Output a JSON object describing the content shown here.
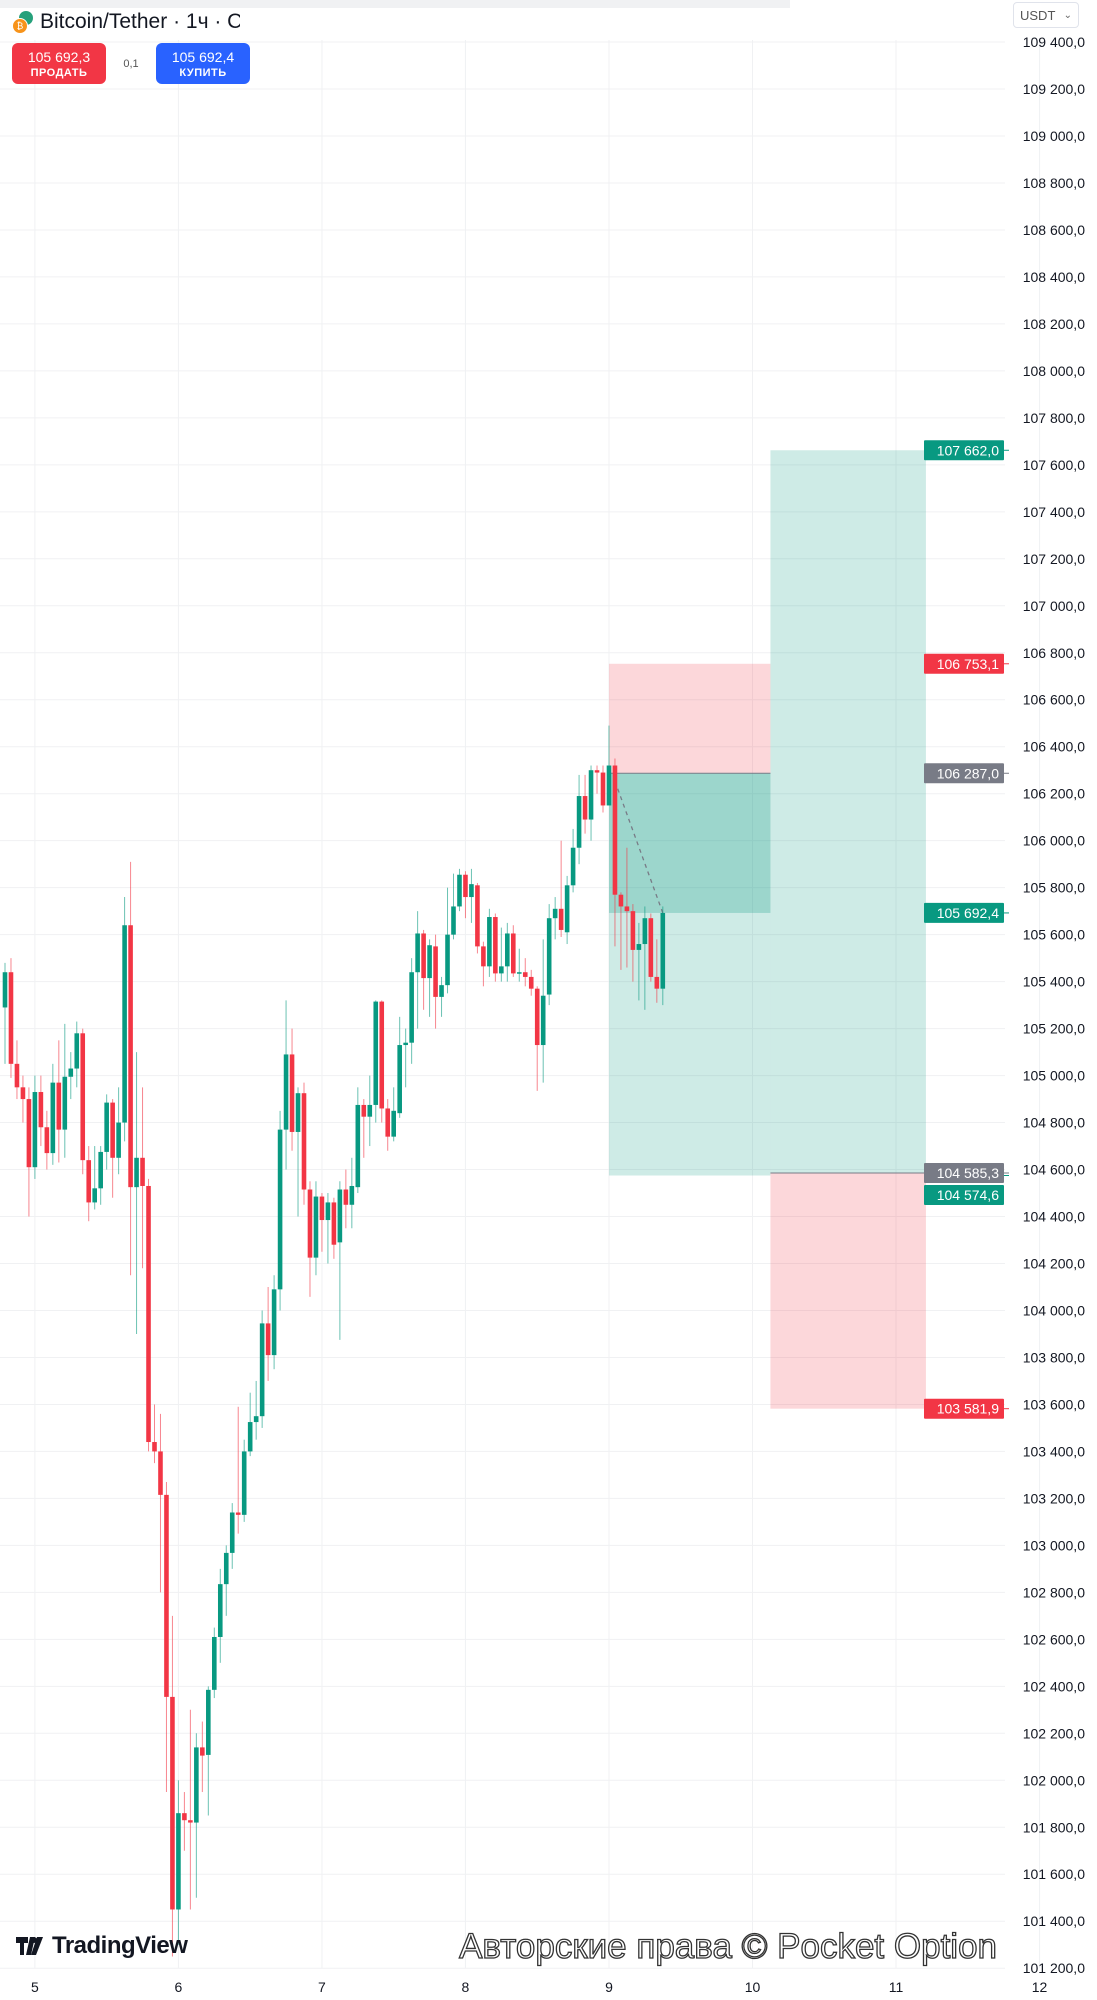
{
  "header": {
    "title": "Bitcoin/Tether · 1ч · С",
    "currency": "USDT"
  },
  "trade": {
    "sell_price": "105 692,3",
    "sell_label": "ПРОДАТЬ",
    "spread": "0,1",
    "buy_price": "105 692,4",
    "buy_label": "КУПИТЬ"
  },
  "watermark": {
    "brand": "TradingView",
    "copyright": "Авторские права © Pocket Option"
  },
  "colors": {
    "up": "#089981",
    "down": "#f23645",
    "profit": "#089981",
    "loss": "#f23645",
    "neutral_tag": "#787b86"
  },
  "chart_data": {
    "type": "candlestick",
    "interval": "1ч",
    "ylim": [
      101200,
      109400
    ],
    "y_ticks": [
      "109 400,0",
      "109 200,0",
      "109 000,0",
      "108 800,0",
      "108 600,0",
      "108 400,0",
      "108 200,0",
      "108 000,0",
      "107 800,0",
      "107 600,0",
      "107 400,0",
      "107 200,0",
      "107 000,0",
      "106 800,0",
      "106 600,0",
      "106 400,0",
      "106 200,0",
      "106 000,0",
      "105 800,0",
      "105 600,0",
      "105 400,0",
      "105 200,0",
      "105 000,0",
      "104 800,0",
      "104 600,0",
      "104 400,0",
      "104 200,0",
      "104 000,0",
      "103 800,0",
      "103 600,0",
      "103 400,0",
      "103 200,0",
      "103 000,0",
      "102 800,0",
      "102 600,0",
      "102 400,0",
      "102 200,0",
      "102 000,0",
      "101 800,0",
      "101 600,0",
      "101 400,0",
      "101 200,0"
    ],
    "x_ticks": [
      "5",
      "6",
      "7",
      "8",
      "9",
      "10",
      "11",
      "12"
    ],
    "grid": true,
    "first_bar": "4 19:00",
    "candles_ohlc": [
      [
        105290,
        105480,
        105050,
        105440
      ],
      [
        105440,
        105500,
        104990,
        105050
      ],
      [
        105050,
        105150,
        104900,
        104950
      ],
      [
        104950,
        105000,
        104800,
        104900
      ],
      [
        104900,
        104950,
        104400,
        104610
      ],
      [
        104610,
        105000,
        104560,
        104930
      ],
      [
        104930,
        105000,
        104700,
        104780
      ],
      [
        104780,
        104850,
        104600,
        104670
      ],
      [
        104670,
        105050,
        104620,
        104970
      ],
      [
        104970,
        105150,
        104630,
        104770
      ],
      [
        104770,
        105220,
        104650,
        104995
      ],
      [
        104995,
        105100,
        104900,
        105030
      ],
      [
        105030,
        105230,
        104950,
        105180
      ],
      [
        105180,
        105200,
        104580,
        104640
      ],
      [
        104640,
        104700,
        104380,
        104460
      ],
      [
        104460,
        104700,
        104430,
        104520
      ],
      [
        104520,
        104700,
        104450,
        104675
      ],
      [
        104675,
        104920,
        104600,
        104885
      ],
      [
        104885,
        104900,
        104480,
        104650
      ],
      [
        104650,
        104950,
        104580,
        104800
      ],
      [
        104800,
        105760,
        104720,
        105640
      ],
      [
        105640,
        105910,
        104150,
        104525
      ],
      [
        104525,
        105100,
        103900,
        104650
      ],
      [
        104650,
        104950,
        104180,
        104530
      ],
      [
        104530,
        104560,
        103400,
        103440
      ],
      [
        103440,
        103600,
        103350,
        103400
      ],
      [
        103400,
        103560,
        102800,
        103215
      ],
      [
        103215,
        103270,
        101950,
        102355
      ],
      [
        102355,
        102700,
        101250,
        101450
      ],
      [
        101450,
        102000,
        101300,
        101860
      ],
      [
        101860,
        101950,
        101700,
        101830
      ],
      [
        101830,
        102300,
        101450,
        101820
      ],
      [
        101820,
        102200,
        101500,
        102140
      ],
      [
        102140,
        102250,
        101950,
        102105
      ],
      [
        102108,
        102400,
        101850,
        102385
      ],
      [
        102385,
        102650,
        102350,
        102610
      ],
      [
        102610,
        102900,
        102500,
        102835
      ],
      [
        102835,
        103000,
        102700,
        102968
      ],
      [
        102968,
        103180,
        102900,
        103140
      ],
      [
        103140,
        103590,
        103050,
        103130
      ],
      [
        103130,
        103450,
        103100,
        103400
      ],
      [
        103400,
        103650,
        103380,
        103525
      ],
      [
        103525,
        103700,
        103450,
        103550
      ],
      [
        103550,
        104000,
        103500,
        103945
      ],
      [
        103945,
        104100,
        103700,
        103810
      ],
      [
        103810,
        104150,
        103750,
        104090
      ],
      [
        104090,
        104850,
        104000,
        104770
      ],
      [
        104770,
        105320,
        104600,
        105090
      ],
      [
        105090,
        105200,
        104680,
        104760
      ],
      [
        104760,
        104950,
        104400,
        104925
      ],
      [
        104925,
        104970,
        104450,
        104515
      ],
      [
        104515,
        104550,
        104058,
        104225
      ],
      [
        104225,
        104550,
        104150,
        104485
      ],
      [
        104485,
        104500,
        104250,
        104385
      ],
      [
        104385,
        104500,
        104200,
        104460
      ],
      [
        104460,
        104480,
        104220,
        104280
      ],
      [
        104290,
        104550,
        103875,
        104515
      ],
      [
        104515,
        104600,
        104350,
        104450
      ],
      [
        104450,
        104650,
        104350,
        104530
      ],
      [
        104525,
        104950,
        104500,
        104875
      ],
      [
        104875,
        104900,
        104650,
        104825
      ],
      [
        104825,
        105000,
        104700,
        104875
      ],
      [
        104875,
        105320,
        104800,
        105315
      ],
      [
        105315,
        105320,
        104800,
        104860
      ],
      [
        104860,
        104900,
        104680,
        104740
      ],
      [
        104740,
        104950,
        104720,
        104850
      ],
      [
        104840,
        105250,
        104820,
        105130
      ],
      [
        105130,
        105200,
        104950,
        105140
      ],
      [
        105140,
        105500,
        105050,
        105440
      ],
      [
        105440,
        105700,
        105200,
        105605
      ],
      [
        105605,
        105620,
        105280,
        105415
      ],
      [
        105415,
        105580,
        105250,
        105555
      ],
      [
        105550,
        105600,
        105200,
        105335
      ],
      [
        105335,
        105420,
        105250,
        105385
      ],
      [
        105385,
        105800,
        105350,
        105600
      ],
      [
        105600,
        105860,
        105580,
        105720
      ],
      [
        105720,
        105880,
        105700,
        105855
      ],
      [
        105855,
        105870,
        105670,
        105760
      ],
      [
        105760,
        105880,
        105650,
        105815
      ],
      [
        105810,
        105820,
        105520,
        105550
      ],
      [
        105550,
        105570,
        105380,
        105465
      ],
      [
        105465,
        105710,
        105420,
        105675
      ],
      [
        105675,
        105690,
        105400,
        105435
      ],
      [
        105435,
        105630,
        105400,
        105465
      ],
      [
        105465,
        105650,
        105400,
        105605
      ],
      [
        105605,
        105640,
        105420,
        105435
      ],
      [
        105435,
        105540,
        105400,
        105440
      ],
      [
        105440,
        105500,
        105380,
        105420
      ],
      [
        105420,
        105450,
        105340,
        105370
      ],
      [
        105370,
        105380,
        104935,
        105130
      ],
      [
        105130,
        105580,
        104970,
        105340
      ],
      [
        105345,
        105730,
        105300,
        105670
      ],
      [
        105670,
        105760,
        105580,
        105710
      ],
      [
        105710,
        106000,
        105590,
        105620
      ],
      [
        105610,
        105850,
        105560,
        105810
      ],
      [
        105810,
        106050,
        105780,
        105970
      ],
      [
        105970,
        106280,
        105900,
        106190
      ],
      [
        106190,
        106280,
        106030,
        106090
      ],
      [
        106090,
        106320,
        106000,
        106300
      ],
      [
        106300,
        106320,
        106200,
        106290
      ],
      [
        106290,
        106320,
        106120,
        106150
      ],
      [
        106150,
        106490,
        106150,
        106320
      ],
      [
        106320,
        106350,
        105550,
        105770
      ],
      [
        105770,
        105780,
        105450,
        105720
      ],
      [
        105720,
        105970,
        105460,
        105700
      ],
      [
        105700,
        105730,
        105400,
        105535
      ],
      [
        105535,
        105650,
        105320,
        105560
      ],
      [
        105560,
        105720,
        105280,
        105670
      ],
      [
        105670,
        105690,
        105400,
        105420
      ],
      [
        105420,
        105580,
        105310,
        105370
      ],
      [
        105370,
        105720,
        105300,
        105692.4
      ]
    ],
    "current_price": 105692.4,
    "positions": [
      {
        "type": "short",
        "start": "9 00:00",
        "end": "10 03:00",
        "entry": 106287.0,
        "stop": 106753.1,
        "target": 104574.6
      },
      {
        "type": "long",
        "start": "10 03:00",
        "end": "11 05:00",
        "entry": 104585.3,
        "stop": 103581.9,
        "target": 107662.0
      }
    ],
    "price_tags": [
      {
        "value": 107662.0,
        "label": "107 662,0",
        "kind": "profit"
      },
      {
        "value": 106753.1,
        "label": "106 753,1",
        "kind": "loss"
      },
      {
        "value": 106287.0,
        "label": "106 287,0",
        "kind": "neutral"
      },
      {
        "value": 105692.4,
        "label": "105 692,4",
        "kind": "profit"
      },
      {
        "value": 104585.3,
        "label": "104 585,3",
        "kind": "neutral"
      },
      {
        "value": 104574.6,
        "label": "104 574,6",
        "kind": "profit"
      },
      {
        "value": 103581.9,
        "label": "103 581,9",
        "kind": "loss"
      }
    ]
  }
}
